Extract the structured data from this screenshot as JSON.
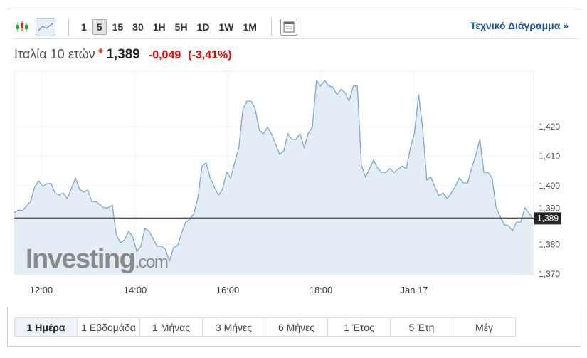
{
  "toolbar": {
    "timeframes": [
      "1",
      "5",
      "15",
      "30",
      "1H",
      "5H",
      "1D",
      "1W",
      "1M"
    ],
    "selected": "5",
    "technical_chart": "Τεχνικό Διάγραμμα »",
    "icons": [
      "candlestick-icon",
      "line-chart-icon",
      "layout-icon"
    ]
  },
  "instrument": {
    "name": "Ιταλία 10 ετών",
    "last": "1,389",
    "change": "-0,049",
    "change_pct": "(-3,41%)",
    "direction": "down"
  },
  "watermark": "Investing.com",
  "periods": [
    "1 Ημέρα",
    "1 Εβδομάδα",
    "1 Μήνας",
    "3 Μήνες",
    "6 Μήνες",
    "1 Έτος",
    "5 Έτη",
    "Μέγ"
  ],
  "selected_period": "1 Ημέρα",
  "colors": {
    "line": "#7ea6cf",
    "fill": "#e4edf5",
    "negative": "#e00000",
    "link": "#1a56a3"
  },
  "chart_data": {
    "type": "area",
    "x_ticks": [
      "12:00",
      "14:00",
      "16:00",
      "18:00",
      "Jan 17"
    ],
    "y_ticks": [
      "1,370",
      "1,380",
      "1,390",
      "1,400",
      "1,410",
      "1,420"
    ],
    "y_tick_values": [
      1.37,
      1.38,
      1.39,
      1.4,
      1.41,
      1.42
    ],
    "ylim": [
      1.37,
      1.437
    ],
    "last_value": 1.389,
    "last_label": "1,389",
    "grid": true,
    "values": [
      1.3908,
      1.3917,
      1.3915,
      1.393,
      1.3946,
      1.3995,
      1.4016,
      1.3997,
      1.4007,
      1.4007,
      1.3975,
      1.3968,
      1.3975,
      1.3956,
      1.399,
      1.4026,
      1.3987,
      1.3978,
      1.3985,
      1.3946,
      1.3946,
      1.3935,
      1.3925,
      1.3925,
      1.3934,
      1.3833,
      1.3806,
      1.3816,
      1.3845,
      1.3826,
      1.3777,
      1.3794,
      1.3855,
      1.3845,
      1.382,
      1.3794,
      1.3794,
      1.3785,
      1.3743,
      1.3789,
      1.3797,
      1.384,
      1.3876,
      1.3886,
      1.3905,
      1.3961,
      1.4067,
      1.4077,
      1.4026,
      1.3995,
      1.3968,
      1.3987,
      1.4045,
      1.4026,
      1.408,
      1.4128,
      1.426,
      1.4287,
      1.4287,
      1.426,
      1.4188,
      1.4176,
      1.4198,
      1.4176,
      1.414,
      1.4106,
      1.4118,
      1.4176,
      1.4157,
      1.4157,
      1.4176,
      1.4128,
      1.4178,
      1.4198,
      1.4357,
      1.4338,
      1.4357,
      1.4338,
      1.4335,
      1.4309,
      1.4326,
      1.4316,
      1.4287,
      1.4338,
      1.4338,
      1.407,
      1.4029,
      1.4058,
      1.4087,
      1.4058,
      1.4045,
      1.4045,
      1.4058,
      1.4045,
      1.4055,
      1.4067,
      1.4058,
      1.4128,
      1.4178,
      1.4309,
      1.4195,
      1.4019,
      1.4029,
      1.3995,
      1.3966,
      1.3975,
      1.3956,
      1.3975,
      1.3997,
      1.4026,
      1.4009,
      1.4009,
      1.406,
      1.4103,
      1.4157,
      1.4045,
      1.4045,
      1.4026,
      1.3925,
      1.3895,
      1.3867,
      1.3864,
      1.3847,
      1.3876,
      1.3876,
      1.3925,
      1.3908,
      1.3886
    ]
  }
}
